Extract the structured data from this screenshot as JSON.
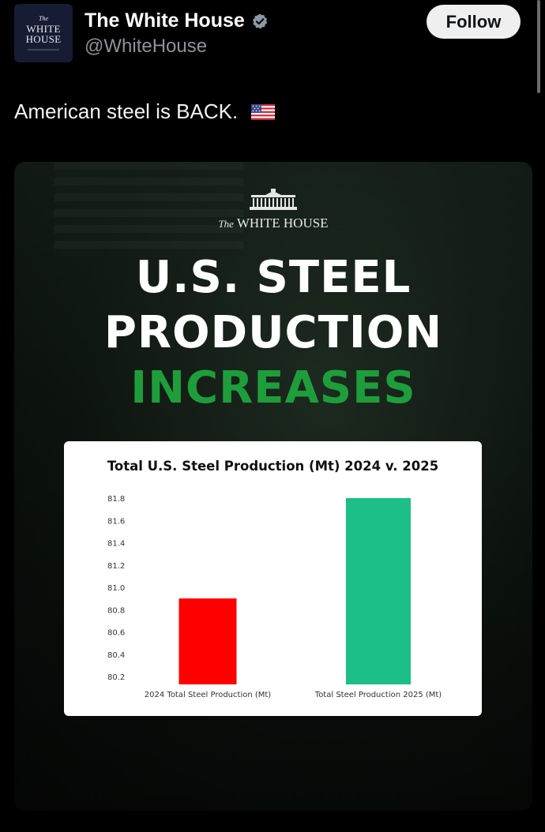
{
  "account": {
    "avatar": {
      "the": "The",
      "line1": "WHITE",
      "line2": "HOUSE"
    },
    "display_name": "The White House",
    "handle": "@WhiteHouse",
    "verified": true,
    "follow_label": "Follow"
  },
  "tweet": {
    "text": "American steel is BACK.",
    "emoji": "us-flag-emoji"
  },
  "media": {
    "logo_the": "The",
    "logo_text": "WHITE HOUSE",
    "headline_line1": "U.S. STEEL",
    "headline_line2": "PRODUCTION",
    "headline_line3": "INCREASES",
    "headline_accent": "#1e9e3b"
  },
  "chart_data": {
    "type": "bar",
    "title": "Total U.S. Steel Production (Mt) 2024 v. 2025",
    "categories": [
      "2024 Total Steel Production (Mt)",
      "Total Steel Production 2025 (Mt)"
    ],
    "values": [
      80.9,
      81.8
    ],
    "colors": [
      "#ff0000",
      "#1cbf87"
    ],
    "yticks": [
      "80.2",
      "80.4",
      "80.6",
      "80.8",
      "81.0",
      "81.2",
      "81.4",
      "81.6",
      "81.8"
    ],
    "ylim": [
      80.2,
      81.8
    ],
    "xlabel": "",
    "ylabel": "",
    "grid": false
  }
}
